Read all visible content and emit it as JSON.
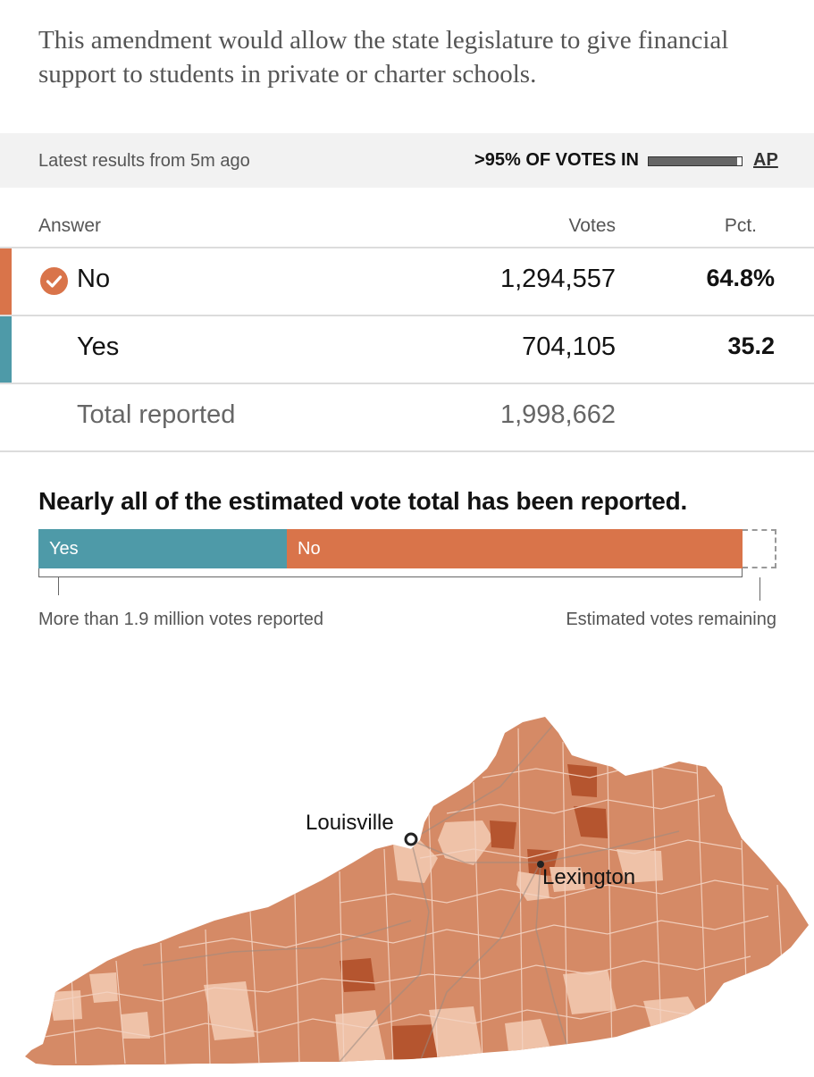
{
  "intro": {
    "text": "This amendment would allow the state legislature to give financial support to students in private or charter schools."
  },
  "status": {
    "latest": "Latest results from 5m ago",
    "votes_in": ">95% OF VOTES IN",
    "votes_in_fraction": 0.95,
    "source": "AP"
  },
  "table": {
    "headers": {
      "answer": "Answer",
      "votes": "Votes",
      "pct": "Pct."
    },
    "rows": [
      {
        "name": "No",
        "votes": "1,294,557",
        "pct": "64.8%",
        "winner": true,
        "color": "#d9744a"
      },
      {
        "name": "Yes",
        "votes": "704,105",
        "pct": "35.2",
        "winner": false,
        "color": "#4e9aa8"
      }
    ],
    "total": {
      "name": "Total reported",
      "votes": "1,998,662"
    }
  },
  "summary": {
    "headline": "Nearly all of the estimated vote total has been reported.",
    "yes_label": "Yes",
    "no_label": "No",
    "yes_share_of_estimate": 0.337,
    "no_share_of_estimate": 0.617,
    "remaining_share_of_estimate": 0.046,
    "reported_label": "More than 1.9 million votes reported",
    "remaining_label": "Estimated votes remaining"
  },
  "map": {
    "cities": [
      {
        "name": "Louisville"
      },
      {
        "name": "Lexington"
      }
    ],
    "colors": {
      "no_base": "#d58a66",
      "no_strong": "#b5552f",
      "no_light": "#efc2a8",
      "county_line": "#f3d3c2",
      "road": "#9a8a82"
    }
  }
}
